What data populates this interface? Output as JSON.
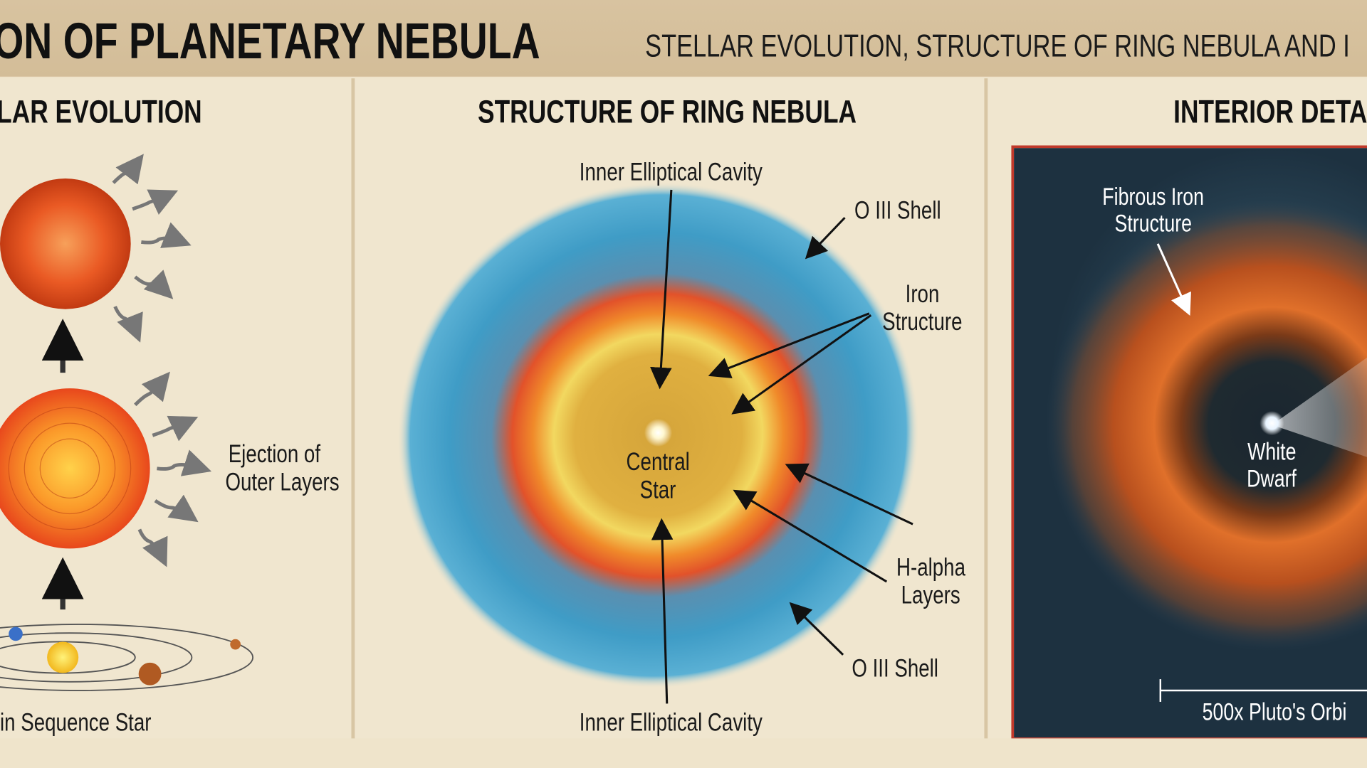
{
  "header": {
    "title": "ON OF PLANETARY NEBULA",
    "subtitle": "STELLAR EVOLUTION, STRUCTURE OF RING NEBULA AND I"
  },
  "panels": {
    "left": {
      "title": "LAR EVOLUTION",
      "labels": {
        "ejection": "Ejection of\nOuter Layers",
        "ejection_line1": "Ejection of",
        "ejection_line2": "Outer Layers",
        "main_sequence": "in Sequence Star"
      }
    },
    "center": {
      "title": "STRUCTURE OF RING NEBULA",
      "labels": {
        "inner_cavity_top": "Inner Elliptical Cavity",
        "oiii_top": "O III Shell",
        "iron_line1": "Iron",
        "iron_line2": "Structure",
        "central_line1": "Central",
        "central_line2": "Star",
        "halpha_line1": "H-alpha",
        "halpha_line2": "Layers",
        "oiii_bottom": "O III Shell",
        "inner_cavity_bottom": "Inner Elliptical Cavity"
      }
    },
    "right": {
      "title": "INTERIOR DETA",
      "labels": {
        "fibrous_line1": "Fibrous Iron",
        "fibrous_line2": "Structure",
        "wd_line1": "White",
        "wd_line2": "Dwarf",
        "scale": "500x Pluto's Orbi"
      }
    }
  },
  "colors": {
    "oiii_shell": "#4aa3c8",
    "halpha": "#e8622a",
    "core": "#d9a93a",
    "frame": "#c0392b"
  }
}
